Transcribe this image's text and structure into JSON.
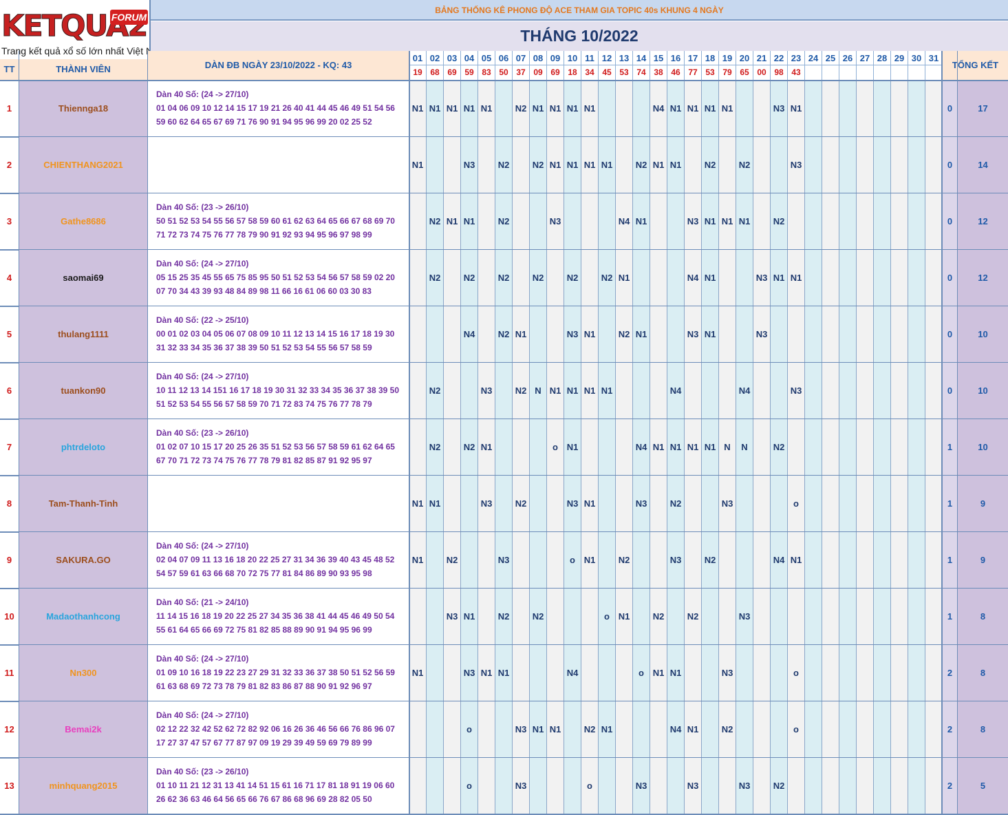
{
  "logo": {
    "brand": "KETQUA2",
    "forum": "FORUM",
    "tagline": "Trang kết quả xổ số lớn nhất Việt Nam"
  },
  "sheet": {
    "subtitle": "BẢNG THỐNG KÊ PHONG ĐỘ ACE THAM GIA TOPIC 40s KHUNG 4 NGÀY",
    "title": "THÁNG 10/2022"
  },
  "headers": {
    "tt": "TT",
    "member": "THÀNH VIÊN",
    "list": "DÀN ĐB NGÀY 23/10/2022 - KQ: 43",
    "total": "TỔNG KẾT"
  },
  "days": [
    "01",
    "02",
    "03",
    "04",
    "05",
    "06",
    "07",
    "08",
    "09",
    "10",
    "11",
    "12",
    "13",
    "14",
    "15",
    "16",
    "17",
    "18",
    "19",
    "20",
    "21",
    "22",
    "23",
    "24",
    "25",
    "26",
    "27",
    "28",
    "29",
    "30",
    "31"
  ],
  "results": [
    "19",
    "68",
    "69",
    "59",
    "83",
    "50",
    "37",
    "09",
    "69",
    "18",
    "34",
    "45",
    "53",
    "74",
    "38",
    "46",
    "77",
    "53",
    "79",
    "65",
    "00",
    "98",
    "43",
    "",
    "",
    "",
    "",
    "",
    "",
    "",
    ""
  ],
  "colors": {
    "header_bg": "#c7d8ef",
    "title_bg": "#e3e0ee",
    "name_bg": "#cec1dd",
    "day_blue": "#daeef3",
    "day_grey": "#f2f2f2",
    "result_red": "#d01919",
    "list_purple": "#7130a0"
  },
  "rows": [
    {
      "tt": "1",
      "name": "Thiennga18",
      "color": "#9c4e1d",
      "list": [
        "Dàn 40 Số: (24 -> 27/10)",
        "01 04 06 09 10 12 14 15 17 19 21 26 40 41 44 45 46 49 51 54 56",
        "59 60 62 64 65 67 69 71 76 90 91 94 95 96 99 20 02 25 52"
      ],
      "days": [
        "N1",
        "N1",
        "N1",
        "N1",
        "N1",
        "",
        "N2",
        "N1",
        "N1",
        "N1",
        "N1",
        "",
        "",
        "",
        "N4",
        "N1",
        "N1",
        "N1",
        "N1",
        "",
        "",
        "N3",
        "N1",
        "",
        "",
        "",
        "",
        "",
        "",
        "",
        ""
      ],
      "t1": "0",
      "t2": "17"
    },
    {
      "tt": "2",
      "name": "CHIENTHANG2021",
      "color": "#f0941e",
      "list": [
        "",
        "",
        ""
      ],
      "days": [
        "N1",
        "",
        "",
        "N3",
        "",
        "N2",
        "",
        "N2",
        "N1",
        "N1",
        "N1",
        "N1",
        "",
        "N2",
        "N1",
        "N1",
        "",
        "N2",
        "",
        "N2",
        "",
        "",
        "N3",
        "",
        "",
        "",
        "",
        "",
        "",
        "",
        ""
      ],
      "t1": "0",
      "t2": "14"
    },
    {
      "tt": "3",
      "name": "Gathe8686",
      "color": "#f0941e",
      "list": [
        "Dàn 40 Số: (23 -> 26/10)",
        "50 51 52 53 54 55 56 57 58 59 60 61 62 63 64 65 66 67 68 69 70",
        "71 72 73 74 75 76 77 78 79 90 91 92 93 94 95 96 97 98 99"
      ],
      "days": [
        "",
        "N2",
        "N1",
        "N1",
        "",
        "N2",
        "",
        "",
        "N3",
        "",
        "",
        "",
        "N4",
        "N1",
        "",
        "",
        "N3",
        "N1",
        "N1",
        "N1",
        "",
        "N2",
        "",
        "",
        "",
        "",
        "",
        "",
        "",
        "",
        ""
      ],
      "t1": "0",
      "t2": "12"
    },
    {
      "tt": "4",
      "name": "saomai69",
      "color": "#1a1a1a",
      "list": [
        "Dàn 40 Số: (24 -> 27/10)",
        "05 15 25 35 45 55 65 75 85 95 50 51 52 53 54 56 57 58 59 02 20",
        "07 70 34 43 39 93 48 84 89 98 11 66 16 61 06 60 03 30 83"
      ],
      "days": [
        "",
        "N2",
        "",
        "N2",
        "",
        "N2",
        "",
        "N2",
        "",
        "N2",
        "",
        "N2",
        "N1",
        "",
        "",
        "",
        "N4",
        "N1",
        "",
        "",
        "N3",
        "N1",
        "N1",
        "",
        "",
        "",
        "",
        "",
        "",
        "",
        ""
      ],
      "t1": "0",
      "t2": "12"
    },
    {
      "tt": "5",
      "name": "thulang1111",
      "color": "#9c4e1d",
      "list": [
        "Dàn 40 Số: (22 -> 25/10)",
        "00 01 02 03 04 05 06 07 08 09 10 11 12 13 14 15 16 17 18 19 30",
        "31 32 33 34 35 36 37 38 39 50 51 52 53 54 55 56 57 58 59"
      ],
      "days": [
        "",
        "",
        "",
        "N4",
        "",
        "N2",
        "N1",
        "",
        "",
        "N3",
        "N1",
        "",
        "N2",
        "N1",
        "",
        "",
        "N3",
        "N1",
        "",
        "",
        "N3",
        "",
        "",
        "",
        "",
        "",
        "",
        "",
        "",
        "",
        ""
      ],
      "t1": "0",
      "t2": "10"
    },
    {
      "tt": "6",
      "name": "tuankon90",
      "color": "#9c4e1d",
      "list": [
        "Dàn 40 Số: (24 -> 27/10)",
        "10 11 12 13 14 151 16 17 18 19 30 31 32 33 34 35 36 37 38 39 50",
        "51 52 53 54 55 56 57 58 59 70 71 72 83 74 75 76 77 78 79"
      ],
      "days": [
        "",
        "N2",
        "",
        "",
        "N3",
        "",
        "N2",
        "N",
        "N1",
        "N1",
        "N1",
        "N1",
        "",
        "",
        "",
        "N4",
        "",
        "",
        "",
        "N4",
        "",
        "",
        "N3",
        "",
        "",
        "",
        "",
        "",
        "",
        "",
        ""
      ],
      "t1": "0",
      "t2": "10"
    },
    {
      "tt": "7",
      "name": "phtrdeloto",
      "color": "#29a5dd",
      "list": [
        "Dàn 40 Số: (23 -> 26/10)",
        "01 02 07 10 15 17 20 25 26 35 51 52 53 56 57 58 59 61 62 64 65",
        "67 70 71 72 73 74 75 76 77 78 79 81 82 85 87 91 92 95 97"
      ],
      "days": [
        "",
        "N2",
        "",
        "N2",
        "N1",
        "",
        "",
        "",
        "o",
        "N1",
        "",
        "",
        "",
        "N4",
        "N1",
        "N1",
        "N1",
        "N1",
        "N",
        "N",
        "",
        "N2",
        "",
        "",
        "",
        "",
        "",
        "",
        "",
        "",
        ""
      ],
      "t1": "1",
      "t2": "10"
    },
    {
      "tt": "8",
      "name": "Tam-Thanh-Tinh",
      "color": "#9c4e1d",
      "list": [
        "",
        "",
        ""
      ],
      "days": [
        "N1",
        "N1",
        "",
        "",
        "N3",
        "",
        "N2",
        "",
        "",
        "N3",
        "N1",
        "",
        "",
        "N3",
        "",
        "N2",
        "",
        "",
        "N3",
        "",
        "",
        "",
        "o",
        "",
        "",
        "",
        "",
        "",
        "",
        "",
        ""
      ],
      "t1": "1",
      "t2": "9"
    },
    {
      "tt": "9",
      "name": "SAKURA.GO",
      "color": "#9c4e1d",
      "list": [
        "Dàn 40 Số: (24 -> 27/10)",
        "02 04 07 09 11 13 16 18 20 22 25 27 31 34 36 39 40 43 45 48 52",
        "54 57 59 61 63 66 68 70 72 75 77 81 84 86 89 90 93 95 98"
      ],
      "days": [
        "N1",
        "",
        "N2",
        "",
        "",
        "N3",
        "",
        "",
        "",
        "o",
        "N1",
        "",
        "N2",
        "",
        "",
        "N3",
        "",
        "N2",
        "",
        "",
        "",
        "N4",
        "N1",
        "",
        "",
        "",
        "",
        "",
        "",
        "",
        ""
      ],
      "t1": "1",
      "t2": "9"
    },
    {
      "tt": "10",
      "name": "Madaothanhcong",
      "color": "#29a5dd",
      "list": [
        "Dàn 40 Số: (21 -> 24/10)",
        "11 14 15 16 18 19 20 22 25 27 34 35 36 38 41 44 45 46 49 50 54",
        "55 61 64 65 66 69 72 75 81 82 85 88 89 90 91 94 95 96 99"
      ],
      "days": [
        "",
        "",
        "N3",
        "N1",
        "",
        "N2",
        "",
        "N2",
        "",
        "",
        "",
        "o",
        "N1",
        "",
        "N2",
        "",
        "N2",
        "",
        "",
        "N3",
        "",
        "",
        "",
        "",
        "",
        "",
        "",
        "",
        "",
        "",
        ""
      ],
      "t1": "1",
      "t2": "8"
    },
    {
      "tt": "11",
      "name": "Nn300",
      "color": "#f0941e",
      "list": [
        "Dàn 40 Số: (24 -> 27/10)",
        "01 09 10 16 18 19 22 23 27 29 31 32 33 36 37 38 50 51 52 56 59",
        "61 63 68 69 72 73 78 79 81 82 83 86 87 88 90 91 92 96 97"
      ],
      "days": [
        "N1",
        "",
        "",
        "N3",
        "N1",
        "N1",
        "",
        "",
        "",
        "N4",
        "",
        "",
        "",
        "o",
        "N1",
        "N1",
        "",
        "",
        "N3",
        "",
        "",
        "",
        "o",
        "",
        "",
        "",
        "",
        "",
        "",
        "",
        ""
      ],
      "t1": "2",
      "t2": "8"
    },
    {
      "tt": "12",
      "name": "Bemai2k",
      "color": "#e83fbe",
      "list": [
        "Dàn 40 Số: (24 -> 27/10)",
        "02 12 22 32 42 52 62 72 82 92 06 16 26 36 46 56 66 76 86 96 07",
        "17 27 37 47 57 67 77 87 97 09 19 29 39 49 59 69 79 89 99"
      ],
      "days": [
        "",
        "",
        "",
        "o",
        "",
        "",
        "N3",
        "N1",
        "N1",
        "",
        "N2",
        "N1",
        "",
        "",
        "",
        "N4",
        "N1",
        "",
        "N2",
        "",
        "",
        "",
        "o",
        "",
        "",
        "",
        "",
        "",
        "",
        "",
        ""
      ],
      "t1": "2",
      "t2": "8"
    },
    {
      "tt": "13",
      "name": "minhquang2015",
      "color": "#f0941e",
      "list": [
        "Dàn 40 Số: (23 -> 26/10)",
        "01 10 11 21 12 31 13 41 14 51 15 61 16 71 17 81 18 91 19 06 60",
        "26 62 36 63 46 64 56 65 66 76 67 86 68 96 69 28 82 05 50"
      ],
      "days": [
        "",
        "",
        "",
        "o",
        "",
        "",
        "N3",
        "",
        "",
        "",
        "o",
        "",
        "",
        "N3",
        "",
        "",
        "N3",
        "",
        "",
        "N3",
        "",
        "N2",
        "",
        "",
        "",
        "",
        "",
        "",
        "",
        "",
        ""
      ],
      "t1": "2",
      "t2": "5"
    }
  ]
}
